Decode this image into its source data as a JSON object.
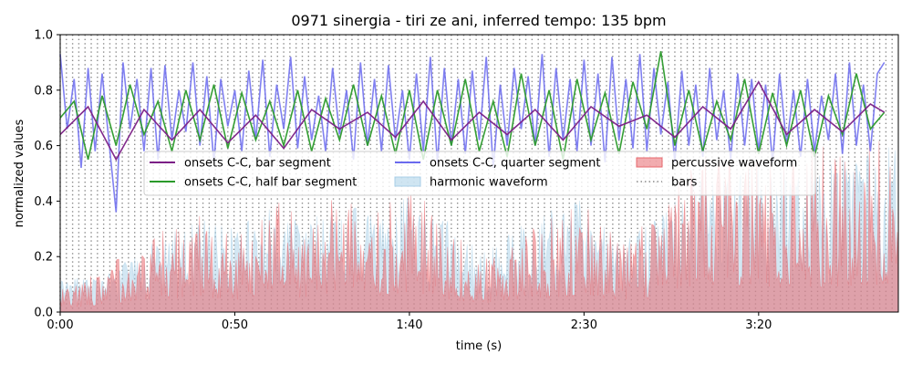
{
  "chart_data": {
    "type": "line",
    "title": "0971 sinergia - tiri ze ani, inferred tempo: 135 bpm",
    "xlabel": "time (s)",
    "ylabel": "normalized values",
    "xlim": [
      0,
      240
    ],
    "ylim": [
      0,
      1.0
    ],
    "xticks": [
      0,
      50,
      100,
      150,
      200
    ],
    "xtick_labels": [
      "0:00",
      "0:50",
      "1:40",
      "2:30",
      "3:20"
    ],
    "yticks": [
      0,
      0.2,
      0.4,
      0.6,
      0.8,
      1.0
    ],
    "ytick_labels": [
      "0.0",
      "0.2",
      "0.4",
      "0.6",
      "0.8",
      "1.0"
    ],
    "bar_line_interval_s": 1.7778,
    "legend_position": "center",
    "legend_columns": 3,
    "series": [
      {
        "name": "onsets C-C, bar segment",
        "kind": "line",
        "color": "#7b1f86",
        "x": [
          0,
          8,
          16,
          24,
          32,
          40,
          48,
          56,
          64,
          72,
          80,
          88,
          96,
          104,
          112,
          120,
          128,
          136,
          144,
          152,
          160,
          168,
          176,
          184,
          192,
          200,
          208,
          216,
          224,
          232,
          236
        ],
        "values": [
          0.64,
          0.74,
          0.55,
          0.73,
          0.62,
          0.73,
          0.61,
          0.71,
          0.59,
          0.73,
          0.66,
          0.72,
          0.63,
          0.76,
          0.62,
          0.72,
          0.64,
          0.73,
          0.62,
          0.74,
          0.67,
          0.71,
          0.63,
          0.74,
          0.66,
          0.83,
          0.64,
          0.73,
          0.65,
          0.75,
          0.72
        ]
      },
      {
        "name": "onsets C-C, half bar segment",
        "kind": "line",
        "color": "#2a9a2a",
        "x": [
          0,
          4,
          8,
          12,
          16,
          20,
          24,
          28,
          32,
          36,
          40,
          44,
          48,
          52,
          56,
          60,
          64,
          68,
          72,
          76,
          80,
          84,
          88,
          92,
          96,
          100,
          104,
          108,
          112,
          116,
          120,
          124,
          128,
          132,
          136,
          140,
          144,
          148,
          152,
          156,
          160,
          164,
          168,
          172,
          176,
          180,
          184,
          188,
          192,
          196,
          200,
          204,
          208,
          212,
          216,
          220,
          224,
          228,
          232,
          236
        ],
        "values": [
          0.7,
          0.76,
          0.55,
          0.78,
          0.6,
          0.82,
          0.64,
          0.76,
          0.58,
          0.8,
          0.62,
          0.82,
          0.59,
          0.79,
          0.62,
          0.76,
          0.6,
          0.8,
          0.58,
          0.77,
          0.62,
          0.82,
          0.6,
          0.78,
          0.57,
          0.8,
          0.55,
          0.8,
          0.6,
          0.84,
          0.58,
          0.76,
          0.56,
          0.86,
          0.6,
          0.8,
          0.55,
          0.84,
          0.62,
          0.79,
          0.57,
          0.83,
          0.66,
          0.94,
          0.6,
          0.8,
          0.58,
          0.76,
          0.62,
          0.84,
          0.57,
          0.79,
          0.6,
          0.8,
          0.56,
          0.78,
          0.64,
          0.86,
          0.66,
          0.72
        ]
      },
      {
        "name": "onsets C-C, quarter segment",
        "kind": "line",
        "color": "#6a6aee",
        "x": [
          0,
          2,
          4,
          6,
          8,
          10,
          12,
          14,
          16,
          18,
          20,
          22,
          24,
          26,
          28,
          30,
          32,
          34,
          36,
          38,
          40,
          42,
          44,
          46,
          48,
          50,
          52,
          54,
          56,
          58,
          60,
          62,
          64,
          66,
          68,
          70,
          72,
          74,
          76,
          78,
          80,
          82,
          84,
          86,
          88,
          90,
          92,
          94,
          96,
          98,
          100,
          102,
          104,
          106,
          108,
          110,
          112,
          114,
          116,
          118,
          120,
          122,
          124,
          126,
          128,
          130,
          132,
          134,
          136,
          138,
          140,
          142,
          144,
          146,
          148,
          150,
          152,
          154,
          156,
          158,
          160,
          162,
          164,
          166,
          168,
          170,
          172,
          174,
          176,
          178,
          180,
          182,
          184,
          186,
          188,
          190,
          192,
          194,
          196,
          198,
          200,
          202,
          204,
          206,
          208,
          210,
          212,
          214,
          216,
          218,
          220,
          222,
          224,
          226,
          228,
          230,
          232,
          234,
          236
        ],
        "values": [
          0.93,
          0.66,
          0.84,
          0.52,
          0.88,
          0.58,
          0.86,
          0.61,
          0.36,
          0.9,
          0.66,
          0.84,
          0.58,
          0.88,
          0.55,
          0.89,
          0.62,
          0.8,
          0.65,
          0.9,
          0.6,
          0.85,
          0.54,
          0.84,
          0.67,
          0.8,
          0.58,
          0.87,
          0.62,
          0.91,
          0.56,
          0.82,
          0.66,
          0.92,
          0.59,
          0.85,
          0.62,
          0.78,
          0.58,
          0.88,
          0.64,
          0.8,
          0.55,
          0.9,
          0.6,
          0.84,
          0.58,
          0.89,
          0.62,
          0.8,
          0.55,
          0.86,
          0.58,
          0.92,
          0.54,
          0.88,
          0.6,
          0.84,
          0.57,
          0.87,
          0.62,
          0.92,
          0.52,
          0.82,
          0.6,
          0.88,
          0.66,
          0.85,
          0.6,
          0.93,
          0.56,
          0.88,
          0.62,
          0.84,
          0.58,
          0.91,
          0.6,
          0.86,
          0.54,
          0.92,
          0.62,
          0.84,
          0.59,
          0.93,
          0.58,
          0.88,
          0.64,
          0.83,
          0.54,
          0.87,
          0.6,
          0.82,
          0.56,
          0.88,
          0.62,
          0.8,
          0.55,
          0.86,
          0.6,
          0.84,
          0.58,
          0.82,
          0.54,
          0.86,
          0.6,
          0.8,
          0.56,
          0.84,
          0.58,
          0.78,
          0.62,
          0.86,
          0.57,
          0.9,
          0.6,
          0.82,
          0.58,
          0.86,
          0.9
        ]
      },
      {
        "name": "harmonic waveform",
        "kind": "area",
        "color": "#a8cfe8",
        "x": [
          0,
          10,
          20,
          30,
          40,
          50,
          60,
          70,
          80,
          90,
          100,
          110,
          120,
          130,
          140,
          150,
          160,
          170,
          180,
          190,
          200,
          210,
          220,
          230,
          240
        ],
        "values": [
          0.14,
          0.12,
          0.2,
          0.28,
          0.34,
          0.3,
          0.38,
          0.32,
          0.4,
          0.36,
          0.42,
          0.34,
          0.22,
          0.3,
          0.38,
          0.42,
          0.24,
          0.34,
          0.48,
          0.52,
          0.56,
          0.5,
          0.54,
          0.58,
          0.6
        ]
      },
      {
        "name": "percussive waveform",
        "kind": "area",
        "color": "#e8686e",
        "x": [
          0,
          10,
          20,
          30,
          40,
          50,
          60,
          70,
          80,
          90,
          100,
          110,
          120,
          130,
          140,
          150,
          160,
          170,
          180,
          190,
          200,
          210,
          220,
          230,
          240
        ],
        "values": [
          0.1,
          0.15,
          0.22,
          0.3,
          0.36,
          0.28,
          0.42,
          0.34,
          0.45,
          0.38,
          0.48,
          0.32,
          0.2,
          0.26,
          0.34,
          0.4,
          0.3,
          0.32,
          0.56,
          0.6,
          0.62,
          0.58,
          0.6,
          0.64,
          0.68
        ]
      },
      {
        "name": "bars",
        "kind": "vline",
        "color": "#8a8a8a"
      }
    ]
  }
}
